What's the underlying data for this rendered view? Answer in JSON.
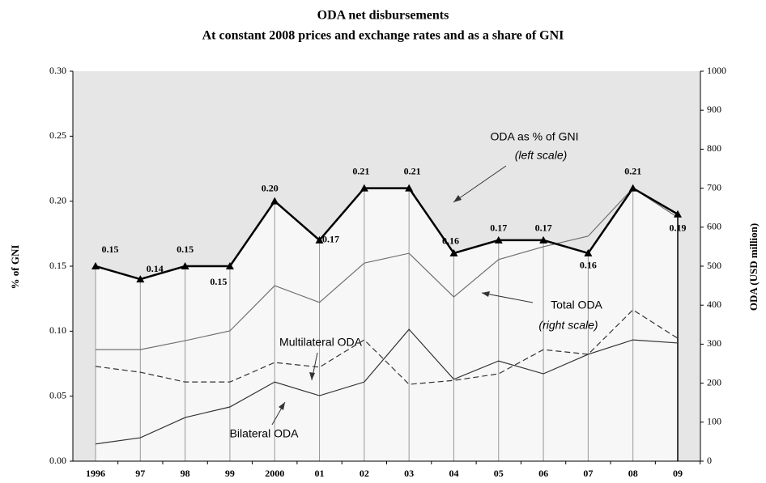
{
  "chart_data": {
    "type": "line",
    "title": "ODA net disbursements",
    "subtitle": "At constant 2008 prices and exchange rates and as a share of GNI",
    "y_label": "% of GNI",
    "y2_label": "ODA (USD million)",
    "categories": [
      "1996",
      "97",
      "98",
      "99",
      "2000",
      "01",
      "02",
      "03",
      "04",
      "05",
      "06",
      "07",
      "08",
      "09"
    ],
    "ylim": [
      0,
      0.3
    ],
    "yticks": [
      {
        "value": 0,
        "label": "0.00"
      },
      {
        "value": 0.05,
        "label": "0.05"
      },
      {
        "value": 0.1,
        "label": "0.10"
      },
      {
        "value": 0.15,
        "label": "0.15"
      },
      {
        "value": 0.2,
        "label": "0.20"
      },
      {
        "value": 0.25,
        "label": "0.25"
      },
      {
        "value": 0.3,
        "label": "0.30"
      }
    ],
    "y2lim": [
      0,
      1000
    ],
    "y2ticks": [
      0,
      100,
      200,
      300,
      400,
      500,
      600,
      700,
      800,
      900,
      1000
    ],
    "series": [
      {
        "name": "ODA as % of GNI",
        "color": "#000000",
        "axis": "y",
        "values": [
          0.15,
          0.14,
          0.15,
          0.15,
          0.2,
          0.17,
          0.21,
          0.21,
          0.16,
          0.17,
          0.17,
          0.16,
          0.21,
          0.19
        ],
        "value_labels": [
          "0.15",
          "0.14",
          "0.15",
          "0.15",
          "0.20",
          "0.17",
          "0.21",
          "0.21",
          "0.16",
          "0.17",
          "0.17",
          "0.16",
          "0.21",
          "0.19"
        ]
      },
      {
        "name": "Total ODA",
        "color": "#707070",
        "axis": "y2",
        "values": [
          286,
          286,
          309,
          334,
          450,
          407,
          508,
          533,
          421,
          517,
          550,
          577,
          700,
          625
        ]
      },
      {
        "name": "Multilateral ODA",
        "color": "#333333",
        "axis": "y2",
        "dashed": true,
        "values": [
          243,
          228,
          203,
          203,
          253,
          241,
          311,
          197,
          207,
          224,
          286,
          274,
          388,
          315
        ]
      },
      {
        "name": "Bilateral ODA",
        "color": "#333333",
        "axis": "y2",
        "values": [
          44,
          60,
          112,
          139,
          203,
          168,
          203,
          338,
          210,
          257,
          224,
          274,
          311,
          303
        ]
      }
    ],
    "annotations": [
      "ODA as % of GNI",
      "(left scale)",
      "Total ODA",
      "(right scale)",
      "Multilateral ODA",
      "Bilateral ODA"
    ]
  }
}
